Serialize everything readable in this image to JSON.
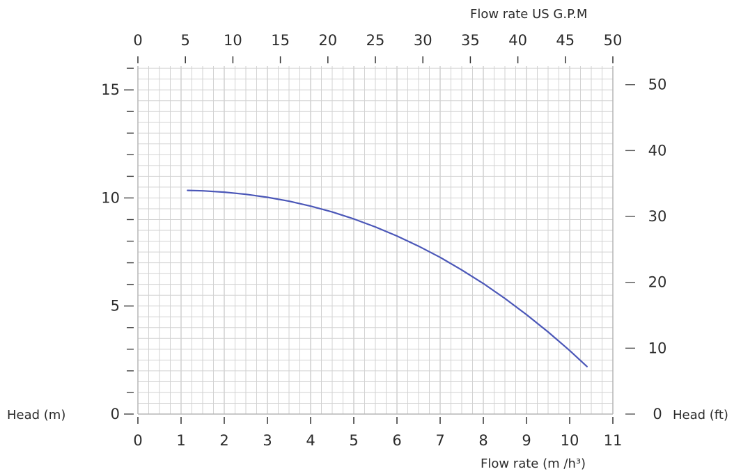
{
  "chart_data": {
    "type": "line",
    "title": "",
    "xlabel": "Flow rate  (m /h³)",
    "ylabel": "Head (m)",
    "secondary_xlabel": "Flow rate US  G.P.M",
    "secondary_ylabel": "Head (ft)",
    "xlim": [
      0,
      11
    ],
    "ylim": [
      0,
      15
    ],
    "secondary_xlim": [
      0,
      50
    ],
    "secondary_ylim": [
      0,
      50
    ],
    "x_ticks": [
      "0",
      "1",
      "2",
      "3",
      "4",
      "5",
      "6",
      "7",
      "8",
      "9",
      "10",
      "11"
    ],
    "y_ticks": [
      "0",
      "5",
      "10",
      "15"
    ],
    "top_ticks": [
      "0",
      "5",
      "10",
      "15",
      "20",
      "25",
      "30",
      "35",
      "40",
      "45",
      "50"
    ],
    "right_ticks": [
      "0",
      "10",
      "20",
      "30",
      "40",
      "50"
    ],
    "grid": true,
    "line_color": "#4b57b8",
    "grid_color": "#d2d2d2",
    "series": [
      {
        "x": [
          1.15,
          1.5,
          2.0,
          2.5,
          3.0,
          3.5,
          4.0,
          4.5,
          5.0,
          5.5,
          6.0,
          6.5,
          7.0,
          7.5,
          8.0,
          8.5,
          9.0,
          9.5,
          10.0,
          10.4
        ],
        "y": [
          10.35,
          10.33,
          10.27,
          10.17,
          10.03,
          9.85,
          9.62,
          9.35,
          9.03,
          8.66,
          8.24,
          7.77,
          7.25,
          6.67,
          6.04,
          5.35,
          4.6,
          3.8,
          2.94,
          2.2
        ]
      }
    ]
  }
}
